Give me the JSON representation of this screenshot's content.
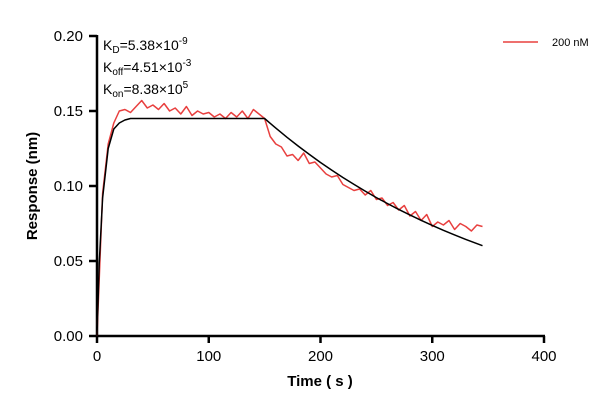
{
  "chart_data": {
    "type": "line",
    "xlabel": "Time ( s )",
    "ylabel": "Response (nm)",
    "xlim": [
      0,
      400
    ],
    "ylim": [
      0,
      0.2
    ],
    "xticks": [
      "0",
      "100",
      "200",
      "300",
      "400"
    ],
    "yticks": [
      "0.00",
      "0.05",
      "0.10",
      "0.15",
      "0.20"
    ],
    "grid": false,
    "legend_position": "top-right",
    "annotations": {
      "kd": {
        "label": "K",
        "sub": "D",
        "value": "=5.38×10",
        "exp": "-9"
      },
      "koff": {
        "label": "K",
        "sub": "off",
        "value": "=4.51×10",
        "exp": "-3"
      },
      "kon": {
        "label": "K",
        "sub": "on",
        "value": "=8.38×10",
        "exp": "5"
      }
    },
    "series": [
      {
        "name": "200 nM",
        "color": "#e8403f",
        "x": [
          0,
          5,
          10,
          15,
          20,
          25,
          30,
          35,
          40,
          45,
          50,
          55,
          60,
          65,
          70,
          75,
          80,
          85,
          90,
          95,
          100,
          105,
          110,
          115,
          120,
          125,
          130,
          135,
          140,
          145,
          150,
          155,
          160,
          165,
          170,
          175,
          180,
          185,
          190,
          195,
          200,
          205,
          210,
          215,
          220,
          225,
          230,
          235,
          240,
          245,
          250,
          255,
          260,
          265,
          270,
          275,
          280,
          285,
          290,
          295,
          300,
          305,
          310,
          315,
          320,
          325,
          330,
          335,
          340,
          345
        ],
        "y": [
          0,
          0.095,
          0.128,
          0.142,
          0.15,
          0.151,
          0.149,
          0.153,
          0.157,
          0.152,
          0.154,
          0.151,
          0.155,
          0.15,
          0.152,
          0.148,
          0.153,
          0.147,
          0.15,
          0.148,
          0.149,
          0.146,
          0.148,
          0.145,
          0.149,
          0.146,
          0.15,
          0.145,
          0.151,
          0.148,
          0.145,
          0.133,
          0.128,
          0.126,
          0.12,
          0.121,
          0.117,
          0.122,
          0.115,
          0.116,
          0.112,
          0.108,
          0.106,
          0.107,
          0.101,
          0.099,
          0.097,
          0.098,
          0.094,
          0.097,
          0.091,
          0.092,
          0.087,
          0.089,
          0.084,
          0.087,
          0.08,
          0.083,
          0.077,
          0.081,
          0.073,
          0.076,
          0.074,
          0.077,
          0.071,
          0.075,
          0.073,
          0.07,
          0.074,
          0.073
        ]
      },
      {
        "color": "#000000",
        "x": [
          0,
          2,
          5,
          10,
          15,
          20,
          25,
          30,
          150,
          155,
          160,
          170,
          180,
          190,
          200,
          210,
          220,
          230,
          240,
          250,
          260,
          270,
          280,
          290,
          300,
          310,
          320,
          330,
          345
        ],
        "y": [
          0,
          0.048,
          0.092,
          0.125,
          0.138,
          0.142,
          0.144,
          0.145,
          0.145,
          0.1418,
          0.1386,
          0.1325,
          0.1267,
          0.1211,
          0.1157,
          0.1106,
          0.1057,
          0.1011,
          0.0966,
          0.0923,
          0.0883,
          0.0844,
          0.0807,
          0.0771,
          0.0737,
          0.0705,
          0.0674,
          0.0644,
          0.0602
        ]
      }
    ]
  }
}
